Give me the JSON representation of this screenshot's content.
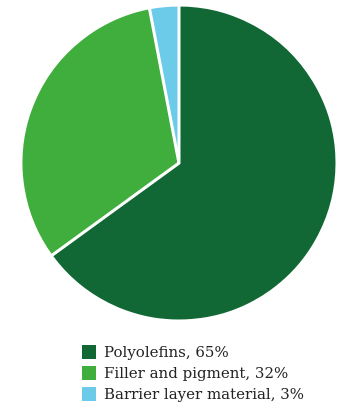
{
  "chart_data": {
    "type": "pie",
    "slices": [
      {
        "label": "Polyolefins, 65%",
        "value": 65,
        "color": "#116834"
      },
      {
        "label": "Filler and pigment, 32%",
        "value": 32,
        "color": "#3fae3c"
      },
      {
        "label": "Barrier layer material, 3%",
        "value": 3,
        "color": "#6ccbe8"
      }
    ],
    "start_angle_deg": 0,
    "direction": "clockwise",
    "legend_placement": "bottom"
  }
}
